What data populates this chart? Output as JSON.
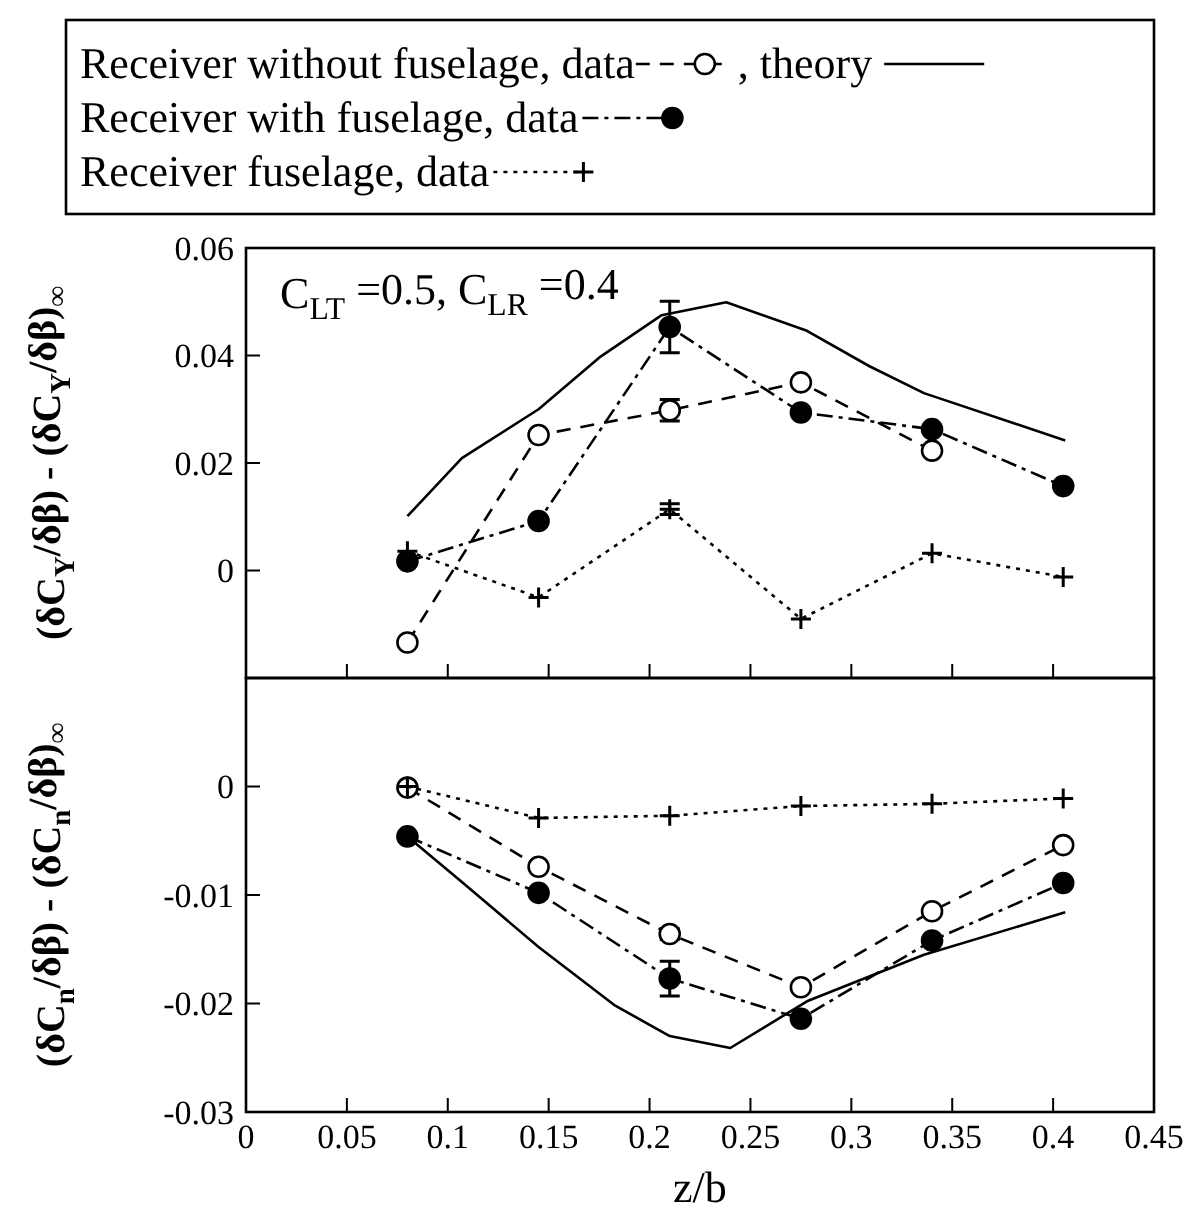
{
  "chart_data": [
    {
      "type": "line",
      "ylabel": "(δC$_{Y}$/δβ) - (δC$_{Y}$/δβ)$_{∞}$",
      "annotations": [
        "C$_{LT}$ =0.5, C$_{LR}$ =0.4"
      ],
      "x": [
        0.08,
        0.145,
        0.21,
        0.275,
        0.34,
        0.405
      ],
      "xlim": [
        0,
        0.45
      ],
      "xticks": [
        0,
        0.05,
        0.1,
        0.15,
        0.2,
        0.25,
        0.3,
        0.35,
        0.4,
        0.45
      ],
      "ylim": [
        -0.02,
        0.06
      ],
      "yticks": [
        0,
        0.02,
        0.04,
        0.06
      ],
      "tick_labels": "y",
      "legend": "top",
      "grid": false,
      "series": [
        {
          "name": "Receiver without fuselage, data",
          "color": "#ffffff",
          "marker": "circle",
          "line_style": "dashed",
          "values": [
            -0.0134,
            0.0252,
            0.0298,
            0.035,
            0.0223,
            null
          ],
          "errors": [
            null,
            null,
            0.002,
            null,
            null,
            null
          ]
        },
        {
          "name": ", theory",
          "color": "#000000",
          "marker": "none",
          "line_style": "solid",
          "x": [
            0.08,
            0.107,
            0.145,
            0.175,
            0.206,
            0.238,
            0.278,
            0.309,
            0.336,
            0.406
          ],
          "values": [
            0.0101,
            0.0209,
            0.03,
            0.0396,
            0.0475,
            0.0499,
            0.0446,
            0.038,
            0.033,
            0.0242
          ]
        },
        {
          "name": "Receiver with fuselage, data",
          "color": "#000000",
          "marker": "circle",
          "line_style": "dashdot",
          "values": [
            0.0017,
            0.0092,
            0.0453,
            0.0294,
            0.0263,
            0.0157
          ],
          "errors": [
            null,
            null,
            0.0048,
            null,
            null,
            null
          ]
        },
        {
          "name": "Receiver fuselage, data",
          "color": "#000000",
          "marker": "cross",
          "line_style": "dotted",
          "values": [
            0.0036,
            -0.005,
            0.0114,
            -0.009,
            0.0032,
            -0.0012
          ],
          "errors": [
            null,
            null,
            0.001,
            null,
            null,
            null
          ]
        }
      ]
    },
    {
      "type": "line",
      "xlabel": "z/b",
      "ylabel": "(δC$_{n}$/δβ) - (δC$_{n}$/δβ)$_{∞}$",
      "x": [
        0.08,
        0.145,
        0.21,
        0.275,
        0.34,
        0.405
      ],
      "xlim": [
        0,
        0.45
      ],
      "xticks": [
        0,
        0.05,
        0.1,
        0.15,
        0.2,
        0.25,
        0.3,
        0.35,
        0.4,
        0.45
      ],
      "ylim": [
        -0.03,
        0.01
      ],
      "yticks": [
        -0.03,
        -0.02,
        -0.01,
        0
      ],
      "legend": false,
      "grid": false,
      "series": [
        {
          "color": "#ffffff",
          "marker": "circle",
          "line_style": "dashed",
          "values": [
            -0.0001,
            -0.0074,
            -0.0136,
            -0.0185,
            -0.0115,
            -0.0054
          ],
          "errors": [
            null,
            null,
            0.0005,
            null,
            null,
            null
          ]
        },
        {
          "color": "#000000",
          "marker": "none",
          "line_style": "solid",
          "x": [
            0.08,
            0.107,
            0.145,
            0.183,
            0.21,
            0.24,
            0.278,
            0.336,
            0.406
          ],
          "values": [
            -0.0046,
            -0.0088,
            -0.0148,
            -0.0202,
            -0.023,
            -0.0241,
            -0.0198,
            -0.0155,
            -0.0116
          ]
        },
        {
          "color": "#000000",
          "marker": "circle",
          "line_style": "dashdot",
          "values": [
            -0.0046,
            -0.0098,
            -0.0177,
            -0.0214,
            -0.0142,
            -0.0089
          ],
          "errors": [
            null,
            null,
            0.0016,
            null,
            null,
            null
          ]
        },
        {
          "color": "#000000",
          "marker": "cross",
          "line_style": "dotted",
          "values": [
            0,
            -0.0029,
            -0.0027,
            -0.0018,
            -0.0016,
            -0.0011
          ]
        }
      ]
    }
  ]
}
